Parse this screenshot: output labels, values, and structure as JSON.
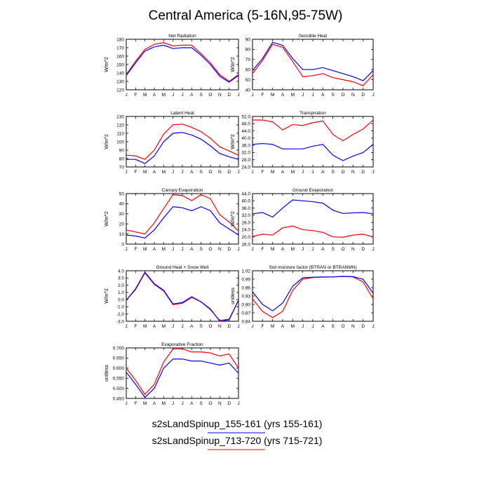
{
  "figure": {
    "title": "Central America (5-16N,95-75W)",
    "legend": [
      {
        "label": "s2sLandSpinup_155-161 (yrs 155-161)",
        "color": "#0000ff"
      },
      {
        "label": "s2sLandSpinup_713-720 (yrs 715-721)",
        "color": "#ff0000"
      }
    ]
  },
  "chart_data": [
    {
      "type": "line",
      "title": "Net Radiation",
      "ylabel": "W/m^2",
      "xticks": [
        "J",
        "F",
        "M",
        "A",
        "M",
        "J",
        "J",
        "A",
        "S",
        "O",
        "N",
        "D",
        "J"
      ],
      "ylim": [
        120,
        180
      ],
      "yticks": [
        "120",
        "130",
        "140",
        "150",
        "160",
        "170",
        "180"
      ],
      "series": [
        {
          "name": "s2sLandSpinup_155-161",
          "color": "#0000ff",
          "values": [
            137,
            152,
            166,
            171,
            173,
            169,
            170,
            170,
            161,
            150,
            136,
            129,
            137
          ]
        },
        {
          "name": "s2sLandSpinup_713-720",
          "color": "#ff0000",
          "values": [
            138,
            154,
            168,
            174,
            176,
            172,
            173,
            173,
            163,
            152,
            138,
            130,
            138
          ]
        }
      ]
    },
    {
      "type": "line",
      "title": "Sensible Heat",
      "ylabel": "W/m^2",
      "xticks": [
        "J",
        "F",
        "M",
        "A",
        "M",
        "J",
        "J",
        "A",
        "S",
        "O",
        "N",
        "D",
        "J"
      ],
      "ylim": [
        40,
        90
      ],
      "yticks": [
        "40",
        "50",
        "60",
        "70",
        "80",
        "90"
      ],
      "series": [
        {
          "name": "s2sLandSpinup_155-161",
          "color": "#0000ff",
          "values": [
            59,
            71,
            87,
            84,
            71,
            60,
            60,
            62,
            59,
            56,
            53,
            49,
            59
          ]
        },
        {
          "name": "s2sLandSpinup_713-720",
          "color": "#ff0000",
          "values": [
            56,
            69,
            85,
            82,
            68,
            53,
            54,
            56,
            52,
            50,
            48,
            44,
            55
          ]
        }
      ]
    },
    {
      "type": "line",
      "title": "Latent Heat",
      "ylabel": "W/m^2",
      "xticks": [
        "J",
        "F",
        "M",
        "A",
        "M",
        "J",
        "J",
        "A",
        "S",
        "O",
        "N",
        "D",
        "J"
      ],
      "ylim": [
        70,
        130
      ],
      "yticks": [
        "70",
        "80",
        "90",
        "100",
        "110",
        "120",
        "130"
      ],
      "series": [
        {
          "name": "s2sLandSpinup_155-161",
          "color": "#0000ff",
          "values": [
            79,
            79,
            74,
            83,
            100,
            110,
            111,
            108,
            103,
            95,
            86,
            82,
            79
          ]
        },
        {
          "name": "s2sLandSpinup_713-720",
          "color": "#ff0000",
          "values": [
            84,
            83,
            79,
            90,
            109,
            120,
            121,
            117,
            112,
            104,
            94,
            89,
            84
          ]
        }
      ]
    },
    {
      "type": "line",
      "title": "Transpiration",
      "ylabel": "W/m^2",
      "xticks": [
        "J",
        "F",
        "M",
        "A",
        "M",
        "J",
        "J",
        "A",
        "S",
        "O",
        "N",
        "D",
        "J"
      ],
      "ylim": [
        24,
        52
      ],
      "yticks": [
        "24.0",
        "28.0",
        "32.0",
        "36.0",
        "40.0",
        "44.0",
        "48.0",
        "52.0"
      ],
      "series": [
        {
          "name": "s2sLandSpinup_155-161",
          "color": "#0000ff",
          "values": [
            36.5,
            37,
            36.5,
            34,
            34,
            34,
            35.5,
            36.5,
            30.5,
            27.5,
            30,
            32,
            36.5
          ]
        },
        {
          "name": "s2sLandSpinup_713-720",
          "color": "#ff0000",
          "values": [
            50,
            50,
            49,
            44.5,
            47.5,
            47,
            48.5,
            49.5,
            42,
            38.5,
            42,
            45,
            50
          ]
        }
      ]
    },
    {
      "type": "line",
      "title": "Canopy Evaporation",
      "ylabel": "W/m^2",
      "xticks": [
        "J",
        "F",
        "M",
        "A",
        "M",
        "J",
        "J",
        "A",
        "S",
        "O",
        "N",
        "D",
        "J"
      ],
      "ylim": [
        0,
        50
      ],
      "yticks": [
        "0",
        "10",
        "20",
        "30",
        "40",
        "50"
      ],
      "series": [
        {
          "name": "s2sLandSpinup_155-161",
          "color": "#0000ff",
          "values": [
            9,
            8,
            6,
            14,
            26,
            37,
            36,
            33,
            37,
            33,
            21,
            15,
            9
          ]
        },
        {
          "name": "s2sLandSpinup_713-720",
          "color": "#ff0000",
          "values": [
            14,
            12,
            10,
            21,
            35,
            49,
            48,
            43,
            49,
            45,
            29,
            22,
            13
          ]
        }
      ]
    },
    {
      "type": "line",
      "title": "Ground Evaporation",
      "ylabel": "W/m^2",
      "xticks": [
        "J",
        "F",
        "M",
        "A",
        "M",
        "J",
        "J",
        "A",
        "S",
        "O",
        "N",
        "D",
        "J"
      ],
      "ylim": [
        16,
        44
      ],
      "yticks": [
        "16.0",
        "20.0",
        "24.0",
        "28.0",
        "32.0",
        "36.0",
        "40.0",
        "44.0"
      ],
      "series": [
        {
          "name": "s2sLandSpinup_155-161",
          "color": "#0000ff",
          "values": [
            32.8,
            33.5,
            31,
            36,
            40.5,
            40,
            39.5,
            38.7,
            34.8,
            33,
            33.3,
            33.5,
            32.8
          ]
        },
        {
          "name": "s2sLandSpinup_713-720",
          "color": "#ff0000",
          "values": [
            20.2,
            21.5,
            21,
            25,
            26,
            24,
            23.5,
            22.5,
            20,
            19.8,
            21,
            21.5,
            20
          ]
        }
      ]
    },
    {
      "type": "line",
      "title": "Ground Heat + Snow Melt",
      "ylabel": "W/m^2",
      "xticks": [
        "J",
        "F",
        "M",
        "A",
        "M",
        "J",
        "J",
        "A",
        "S",
        "O",
        "N",
        "D",
        "J"
      ],
      "ylim": [
        -3.0,
        4.0
      ],
      "yticks": [
        "-3.0",
        "-2.0",
        "-1.0",
        "0.0",
        "1.0",
        "2.0",
        "3.0",
        "4.0"
      ],
      "series": [
        {
          "name": "s2sLandSpinup_155-161",
          "color": "#0000ff",
          "values": [
            -0.1,
            1.5,
            3.8,
            2.2,
            1.3,
            -0.6,
            -0.4,
            0.4,
            -0.3,
            -1.3,
            -3.0,
            -2.8,
            -0.1
          ]
        },
        {
          "name": "s2sLandSpinup_713-720",
          "color": "#ff0000",
          "values": [
            -0.1,
            1.4,
            3.7,
            2.1,
            1.2,
            -0.7,
            -0.5,
            0.3,
            -0.3,
            -1.4,
            -2.9,
            -2.7,
            -0.1
          ]
        }
      ]
    },
    {
      "type": "line",
      "title": "Soil moisture factor (BTRAN or BTRANMN)",
      "ylabel": "unitless",
      "xticks": [
        "J",
        "F",
        "M",
        "A",
        "M",
        "J",
        "J",
        "A",
        "S",
        "O",
        "N",
        "D",
        "J"
      ],
      "ylim": [
        0.84,
        1.02
      ],
      "yticks": [
        "0.84",
        "0.87",
        "0.90",
        "0.93",
        "0.96",
        "0.99",
        "1.02"
      ],
      "series": [
        {
          "name": "s2sLandSpinup_155-161",
          "color": "#0000ff",
          "values": [
            0.945,
            0.9,
            0.877,
            0.905,
            0.965,
            0.995,
            0.997,
            0.998,
            0.998,
            1.0,
            0.999,
            0.99,
            0.94
          ]
        },
        {
          "name": "s2sLandSpinup_713-720",
          "color": "#ff0000",
          "values": [
            0.92,
            0.875,
            0.853,
            0.875,
            0.95,
            0.99,
            0.996,
            0.997,
            0.998,
            1.0,
            0.998,
            0.98,
            0.92
          ]
        }
      ]
    },
    {
      "type": "line",
      "title": "Evaporative Fraction",
      "ylabel": "unitless",
      "xticks": [
        "J",
        "F",
        "M",
        "A",
        "M",
        "J",
        "J",
        "A",
        "S",
        "O",
        "N",
        "D",
        "J"
      ],
      "ylim": [
        0.45,
        0.7
      ],
      "yticks": [
        "0.450",
        "0.500",
        "0.550",
        "0.600",
        "0.650",
        "0.700"
      ],
      "series": [
        {
          "name": "s2sLandSpinup_155-161",
          "color": "#0000ff",
          "values": [
            0.58,
            0.52,
            0.455,
            0.5,
            0.6,
            0.645,
            0.645,
            0.635,
            0.635,
            0.625,
            0.615,
            0.625,
            0.575
          ]
        },
        {
          "name": "s2sLandSpinup_713-720",
          "color": "#ff0000",
          "values": [
            0.6,
            0.54,
            0.47,
            0.52,
            0.63,
            0.695,
            0.695,
            0.68,
            0.68,
            0.675,
            0.66,
            0.67,
            0.6
          ]
        }
      ]
    }
  ]
}
